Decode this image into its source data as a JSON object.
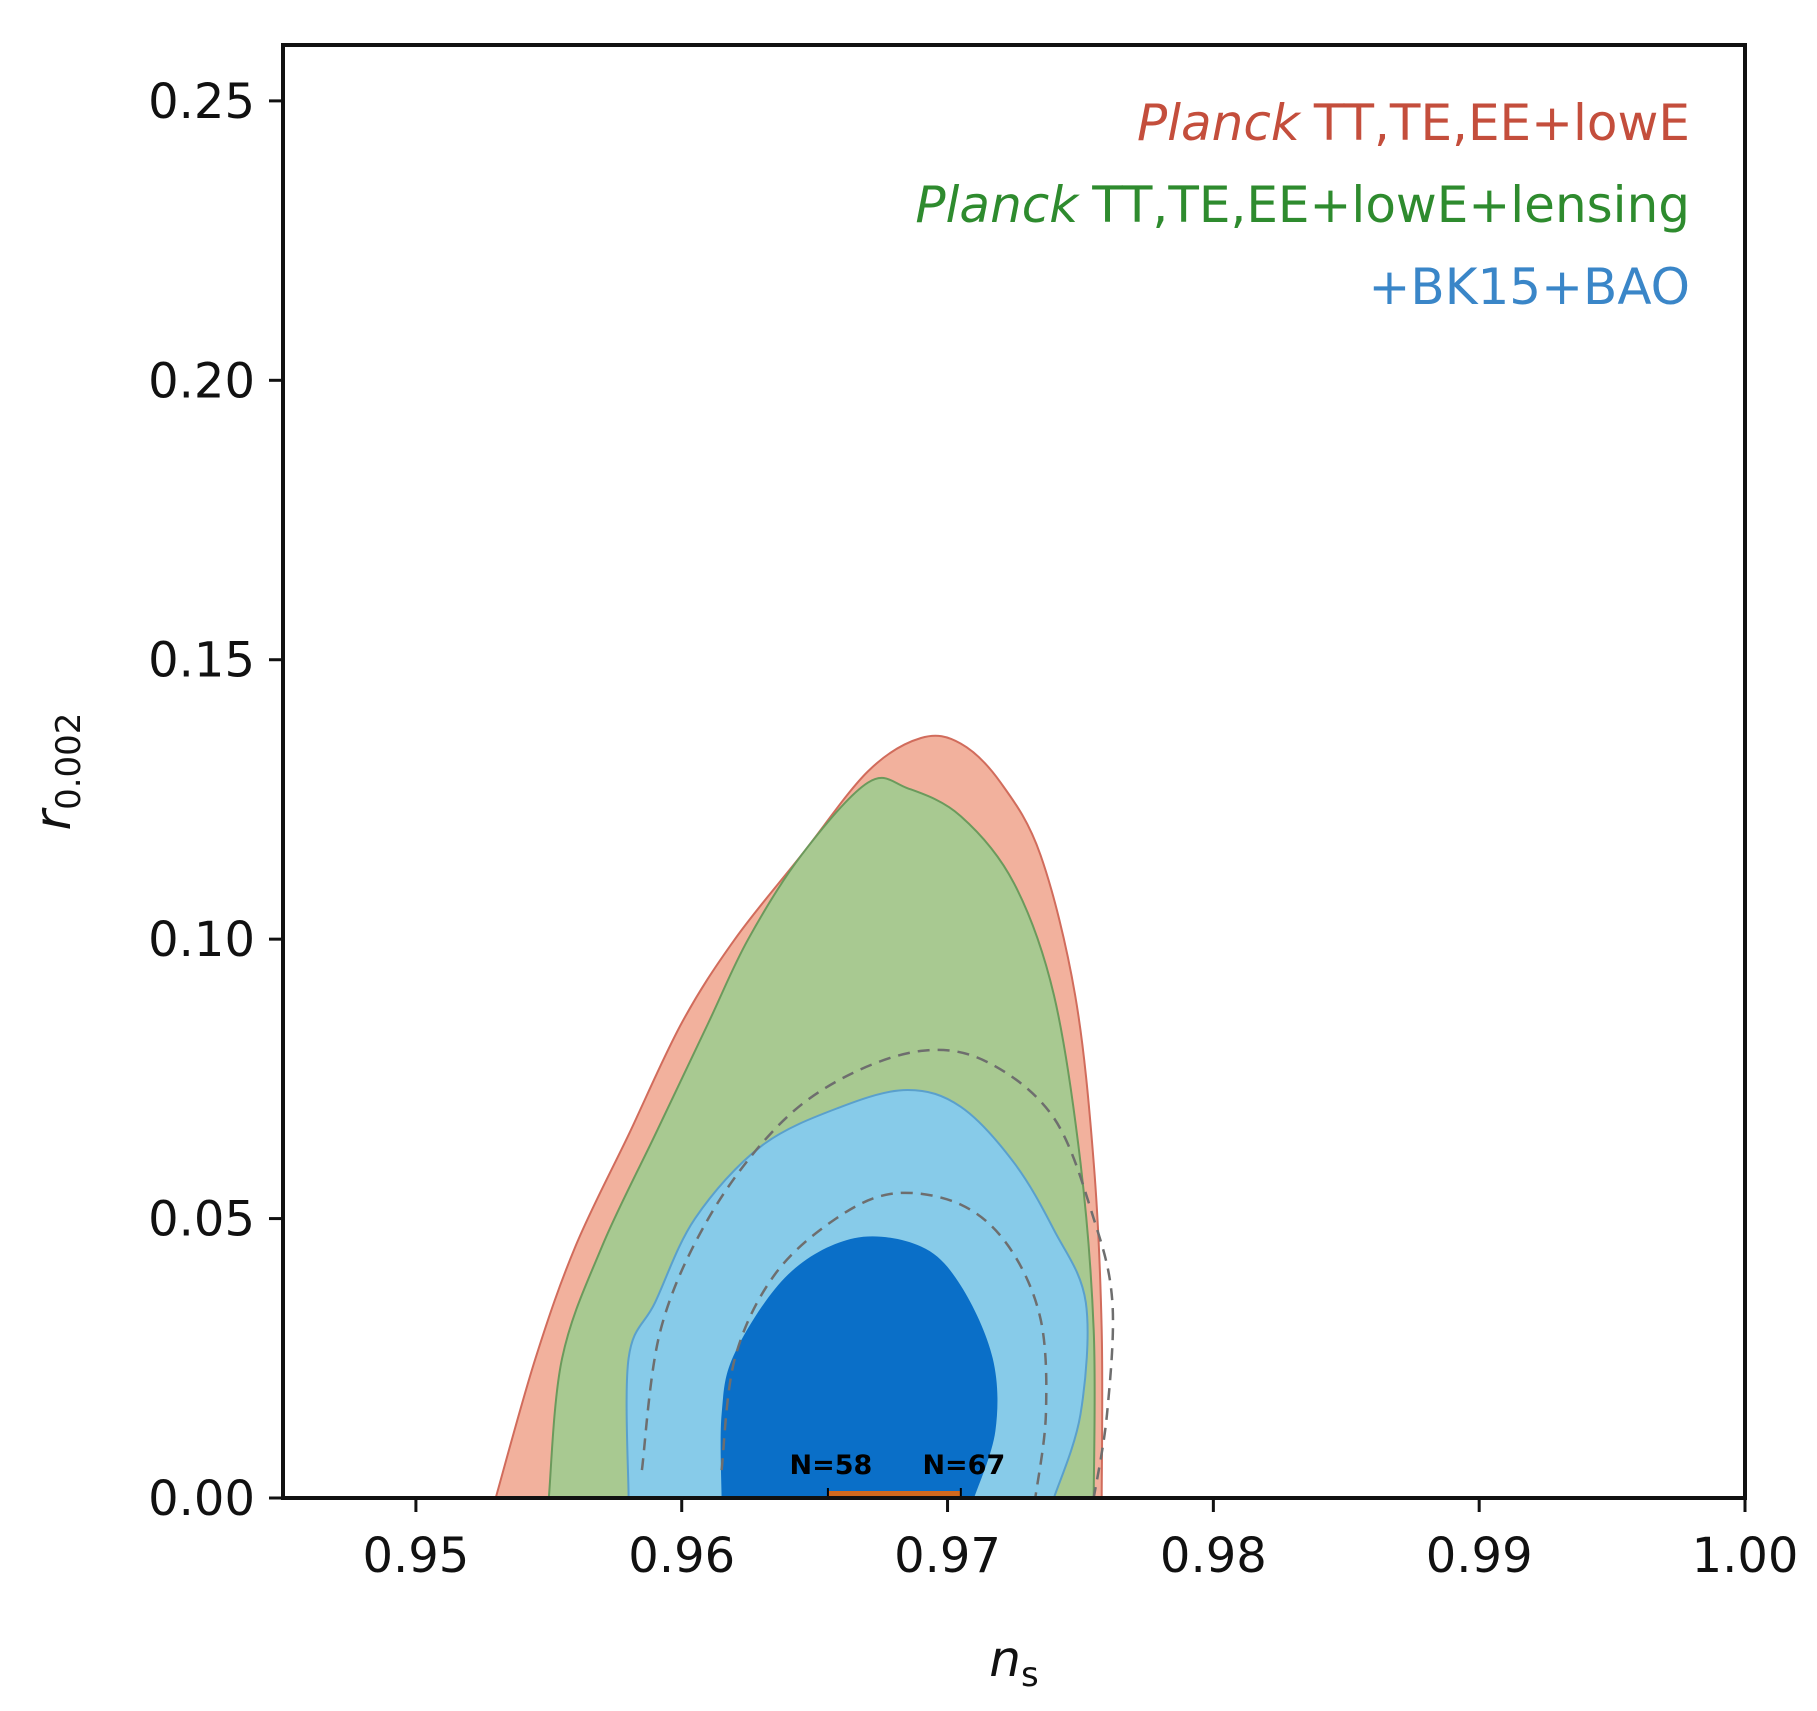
{
  "chart_data": {
    "type": "contour",
    "xlabel": {
      "main": "n",
      "sub": "s"
    },
    "ylabel": {
      "main": "r",
      "sub": "0.002"
    },
    "xlim": [
      0.945,
      1.0
    ],
    "ylim": [
      0.0,
      0.26
    ],
    "x_ticks": [
      "0.95",
      "0.96",
      "0.97",
      "0.98",
      "0.99",
      "1.00"
    ],
    "x_tick_values": [
      0.95,
      0.96,
      0.97,
      0.98,
      0.99,
      1.0
    ],
    "y_ticks": [
      "0.00",
      "0.05",
      "0.10",
      "0.15",
      "0.20",
      "0.25"
    ],
    "y_tick_values": [
      0.0,
      0.05,
      0.1,
      0.15,
      0.2,
      0.25
    ],
    "legend_placement": "top-right",
    "series": [
      {
        "name_italic": "Planck",
        "name_rest": "TT,TE,EE+lowE",
        "color": "#c44e3c",
        "fill_outer": "#f2b19d",
        "stroke": "#d16c5c",
        "contour_95": [
          [
            0.953,
            0.0
          ],
          [
            0.9545,
            0.025
          ],
          [
            0.956,
            0.045
          ],
          [
            0.958,
            0.065
          ],
          [
            0.96,
            0.085
          ],
          [
            0.962,
            0.1
          ],
          [
            0.9645,
            0.115
          ],
          [
            0.967,
            0.13
          ],
          [
            0.969,
            0.136
          ],
          [
            0.9705,
            0.135
          ],
          [
            0.972,
            0.128
          ],
          [
            0.9735,
            0.115
          ],
          [
            0.9748,
            0.09
          ],
          [
            0.9755,
            0.06
          ],
          [
            0.9758,
            0.03
          ],
          [
            0.9758,
            0.0
          ]
        ]
      },
      {
        "name_italic": "Planck",
        "name_rest": "TT,TE,EE+lowE+lensing",
        "color": "#2e8b2e",
        "fill_outer": "#a8c991",
        "stroke": "#6b9a5c",
        "contour_95": [
          [
            0.955,
            0.0
          ],
          [
            0.9555,
            0.025
          ],
          [
            0.957,
            0.045
          ],
          [
            0.959,
            0.065
          ],
          [
            0.961,
            0.085
          ],
          [
            0.9625,
            0.1
          ],
          [
            0.9645,
            0.115
          ],
          [
            0.967,
            0.128
          ],
          [
            0.9685,
            0.127
          ],
          [
            0.9705,
            0.122
          ],
          [
            0.9725,
            0.11
          ],
          [
            0.974,
            0.09
          ],
          [
            0.975,
            0.06
          ],
          [
            0.9755,
            0.03
          ],
          [
            0.9755,
            0.0
          ]
        ]
      },
      {
        "name_italic": "",
        "name_rest": "+BK15+BAO",
        "color": "#3a86c8",
        "fill_outer": "#87cbe9",
        "fill_inner": "#0a6fc8",
        "stroke": "#5aa0cc",
        "contour_95": [
          [
            0.958,
            0.0
          ],
          [
            0.958,
            0.025
          ],
          [
            0.959,
            0.035
          ],
          [
            0.9605,
            0.05
          ],
          [
            0.963,
            0.063
          ],
          [
            0.966,
            0.07
          ],
          [
            0.9685,
            0.073
          ],
          [
            0.9705,
            0.07
          ],
          [
            0.9725,
            0.06
          ],
          [
            0.974,
            0.048
          ],
          [
            0.9752,
            0.035
          ],
          [
            0.975,
            0.015
          ],
          [
            0.974,
            0.0
          ]
        ],
        "contour_68": [
          [
            0.9615,
            0.0
          ],
          [
            0.9615,
            0.015
          ],
          [
            0.962,
            0.026
          ],
          [
            0.964,
            0.04
          ],
          [
            0.9665,
            0.0465
          ],
          [
            0.969,
            0.045
          ],
          [
            0.9705,
            0.038
          ],
          [
            0.9717,
            0.025
          ],
          [
            0.9718,
            0.012
          ],
          [
            0.971,
            0.0
          ]
        ]
      }
    ],
    "dashed_contours": [
      [
        [
          0.9585,
          0.005
        ],
        [
          0.9592,
          0.03
        ],
        [
          0.961,
          0.05
        ],
        [
          0.9635,
          0.066
        ],
        [
          0.966,
          0.075
        ],
        [
          0.969,
          0.08
        ],
        [
          0.9715,
          0.078
        ],
        [
          0.974,
          0.068
        ],
        [
          0.9755,
          0.05
        ],
        [
          0.9762,
          0.035
        ],
        [
          0.976,
          0.015
        ],
        [
          0.9755,
          0.0
        ]
      ],
      [
        [
          0.9615,
          0.005
        ],
        [
          0.962,
          0.025
        ],
        [
          0.9635,
          0.04
        ],
        [
          0.9658,
          0.05
        ],
        [
          0.968,
          0.0545
        ],
        [
          0.9705,
          0.0525
        ],
        [
          0.9723,
          0.045
        ],
        [
          0.9735,
          0.032
        ],
        [
          0.9737,
          0.015
        ],
        [
          0.9733,
          0.0
        ]
      ]
    ],
    "markers": {
      "segment_x": [
        0.9655,
        0.9705
      ],
      "segment_color": "#d2691e",
      "labels": [
        {
          "text": "N=58",
          "x": 0.9655
        },
        {
          "text": "N=67",
          "x": 0.9705
        }
      ]
    }
  }
}
